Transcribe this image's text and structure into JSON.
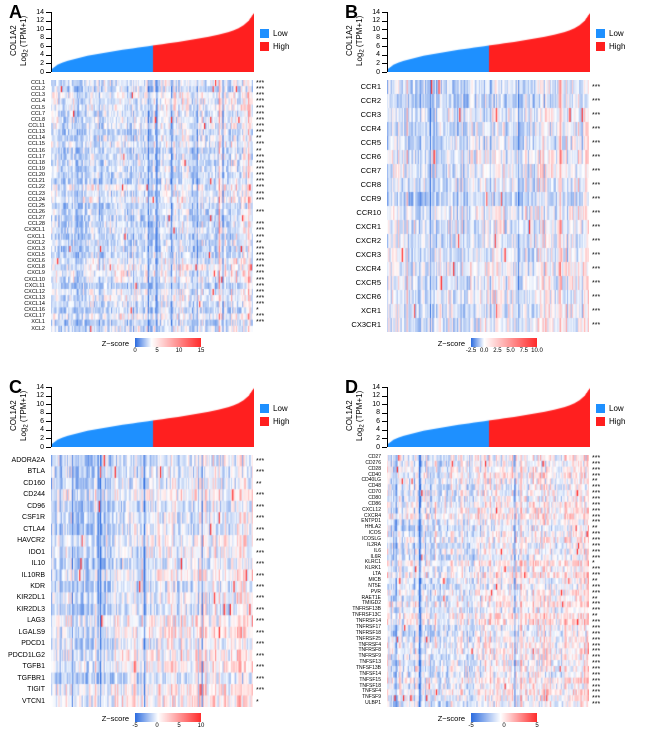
{
  "figure_title": "",
  "chart_data": {
    "type": "heatmap",
    "zscore_label": "Z−score",
    "colormap": {
      "low": "#2B6BDF",
      "mid": "#FFFFFF",
      "high": "#FF2B2B"
    },
    "shared_expression_plot": {
      "ylabel_gene": "COL1A2",
      "ylabel_log_prefix": "Log",
      "ylabel_log_sub": "2",
      "ylabel_log_suffix": " (TPM+1)",
      "ylim": [
        0,
        14
      ],
      "yticks": [
        0,
        2,
        4,
        6,
        8,
        10,
        12,
        14
      ],
      "groups": [
        {
          "label": "Low",
          "color": "#1E90FF"
        },
        {
          "label": "High",
          "color": "#FF1F1F"
        }
      ],
      "split_fraction": 0.5,
      "curve": [
        0.8,
        1.7,
        2.2,
        2.6,
        2.9,
        3.2,
        3.5,
        3.8,
        4.0,
        4.2,
        4.4,
        4.6,
        4.8,
        5.0,
        5.2,
        5.35,
        5.5,
        5.7,
        5.85,
        6.0,
        6.2,
        6.35,
        6.5,
        6.7,
        6.85,
        7.0,
        7.2,
        7.4,
        7.6,
        7.8,
        8.0,
        8.2,
        8.45,
        8.7,
        9.0,
        9.3,
        9.7,
        10.2,
        10.9,
        11.9,
        13.6
      ]
    },
    "panels": [
      {
        "label": "A",
        "n_samples": 165,
        "seed": 11,
        "red_bias": 0.0,
        "genes": [
          "CCL1",
          "CCL2",
          "CCL3",
          "CCL4",
          "CCL5",
          "CCL7",
          "CCL8",
          "CCL11",
          "CCL13",
          "CCL14",
          "CCL15",
          "CCL16",
          "CCL17",
          "CCL18",
          "CCL19",
          "CCL20",
          "CCL21",
          "CCL22",
          "CCL23",
          "CCL24",
          "CCL25",
          "CCL26",
          "CCL27",
          "CCL28",
          "CX3CL1",
          "CXCL1",
          "CXCL2",
          "CXCL3",
          "CXCL5",
          "CXCL6",
          "CXCL8",
          "CXCL9",
          "CXCL10",
          "CXCL11",
          "CXCL12",
          "CXCL13",
          "CXCL14",
          "CXCL16",
          "CXCL17",
          "XCL1",
          "XCL2"
        ],
        "significance": [
          "***",
          "***",
          "***",
          "***",
          "***",
          "***",
          "***",
          "***",
          "***",
          "**",
          "***",
          "**",
          "***",
          "***",
          "***",
          "***",
          "***",
          "***",
          "***",
          "***",
          "",
          "***",
          "",
          "***",
          "***",
          "***",
          "**",
          "***",
          "***",
          "***",
          "***",
          "***",
          "***",
          "***",
          "***",
          "***",
          "***",
          "*",
          "***",
          "***",
          ""
        ],
        "zscore": {
          "ticks": [
            "0",
            "5",
            "10",
            "15"
          ],
          "white_pos": 0.25
        }
      },
      {
        "label": "B",
        "n_samples": 165,
        "seed": 22,
        "red_bias": 0.03,
        "genes": [
          "CCR1",
          "CCR2",
          "CCR3",
          "CCR4",
          "CCR5",
          "CCR6",
          "CCR7",
          "CCR8",
          "CCR9",
          "CCR10",
          "CXCR1",
          "CXCR2",
          "CXCR3",
          "CXCR4",
          "CXCR5",
          "CXCR6",
          "XCR1",
          "CX3CR1"
        ],
        "significance": [
          "***",
          "***",
          "***",
          "***",
          "***",
          "***",
          "***",
          "***",
          "***",
          "***",
          "***",
          "***",
          "***",
          "***",
          "***",
          "***",
          "***",
          "***"
        ],
        "zscore": {
          "ticks": [
            "-2.5",
            "0.0",
            "2.5",
            "5.0",
            "7.5",
            "10.0"
          ],
          "white_pos": 0.2
        }
      },
      {
        "label": "C",
        "n_samples": 165,
        "seed": 33,
        "red_bias": 0.12,
        "genes": [
          "ADORA2A",
          "BTLA",
          "CD160",
          "CD244",
          "CD96",
          "CSF1R",
          "CTLA4",
          "HAVCR2",
          "IDO1",
          "IL10",
          "IL10RB",
          "KDR",
          "KIR2DL1",
          "KIR2DL3",
          "LAG3",
          "LGALS9",
          "PDCD1",
          "PDCD1LG2",
          "TGFB1",
          "TGFBR1",
          "TIGIT",
          "VTCN1"
        ],
        "significance": [
          "***",
          "***",
          "**",
          "***",
          "***",
          "***",
          "***",
          "***",
          "***",
          "***",
          "***",
          "***",
          "***",
          "***",
          "***",
          "***",
          "***",
          "***",
          "***",
          "***",
          "***",
          "*"
        ],
        "zscore": {
          "ticks": [
            "-5",
            "0",
            "5",
            "10"
          ],
          "white_pos": 0.35
        }
      },
      {
        "label": "D",
        "n_samples": 165,
        "seed": 44,
        "red_bias": 0.2,
        "genes": [
          "CD27",
          "CD276",
          "CD28",
          "CD40",
          "CD40LG",
          "CD48",
          "CD70",
          "CD80",
          "CD86",
          "CXCL12",
          "CXCR4",
          "ENTPD1",
          "HHLA2",
          "ICOS",
          "ICOSLG",
          "IL2RA",
          "IL6",
          "IL6R",
          "KLRC1",
          "KLRK1",
          "LTA",
          "MICB",
          "NT5E",
          "PVR",
          "RAET1E",
          "TMIGD2",
          "TNFRSF13B",
          "TNFRSF13C",
          "TNFRSF14",
          "TNFRSF17",
          "TNFRSF18",
          "TNFRSF25",
          "TNFRSF4",
          "TNFRSF8",
          "TNFRSF9",
          "TNFSF13",
          "TNFSF13B",
          "TNFSF14",
          "TNFSF15",
          "TNFSF18",
          "TNFSF4",
          "TNFSF9",
          "ULBP1"
        ],
        "significance": [
          "***",
          "***",
          "***",
          "***",
          "**",
          "***",
          "***",
          "***",
          "***",
          "***",
          "***",
          "***",
          "**",
          "***",
          "***",
          "***",
          "***",
          "***",
          "*",
          "***",
          "***",
          "**",
          "***",
          "***",
          "**",
          "***",
          "***",
          "**",
          "***",
          "***",
          "***",
          "***",
          "***",
          "***",
          "***",
          "***",
          "***",
          "***",
          "***",
          "***",
          "***",
          "***",
          "***"
        ],
        "zscore": {
          "ticks": [
            "-5",
            "0",
            "5"
          ],
          "white_pos": 0.45
        }
      }
    ]
  }
}
